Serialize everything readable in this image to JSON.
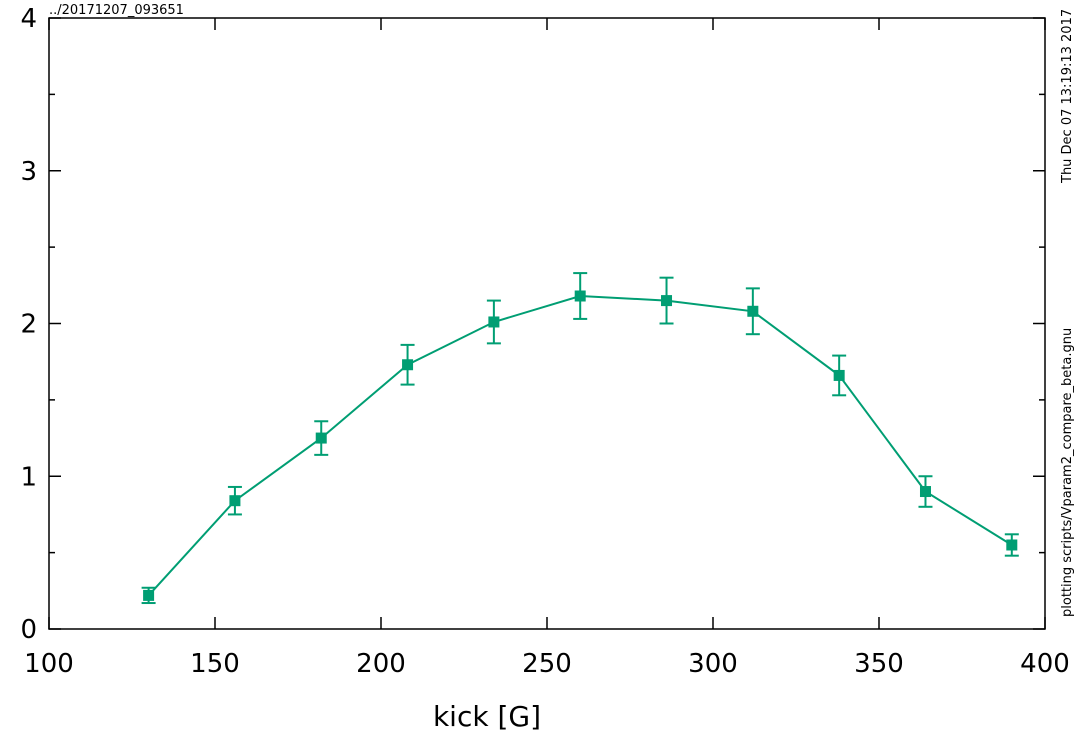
{
  "chart_data": {
    "type": "line",
    "corner_label": "../20171207_093651",
    "right_top_label": "Thu Dec 07 13:19:13 2017",
    "right_bottom_label": "plotting scripts/Vparam2_compare_beta.gnu",
    "xlabel": "kick [G]",
    "ylabel": "",
    "xlim": [
      100,
      400
    ],
    "ylim": [
      0,
      4
    ],
    "x_ticks": [
      100,
      150,
      200,
      250,
      300,
      350,
      400
    ],
    "x_tick_labels": [
      "100",
      "150",
      "200",
      "250",
      "300",
      "350",
      "400"
    ],
    "y_ticks": [
      0,
      1,
      2,
      3,
      4
    ],
    "y_tick_labels": [
      "0",
      "1",
      "2",
      "3",
      "4"
    ],
    "grid": false,
    "series": [
      {
        "color": "#009e73",
        "marker": "square",
        "x": [
          130,
          156,
          182,
          208,
          234,
          260,
          286,
          312,
          338,
          364,
          390
        ],
        "y": [
          0.22,
          0.84,
          1.25,
          1.73,
          2.01,
          2.18,
          2.15,
          2.08,
          1.66,
          0.9,
          0.55
        ],
        "y_err": [
          0.05,
          0.09,
          0.11,
          0.13,
          0.14,
          0.15,
          0.15,
          0.15,
          0.13,
          0.1,
          0.07
        ]
      }
    ]
  }
}
